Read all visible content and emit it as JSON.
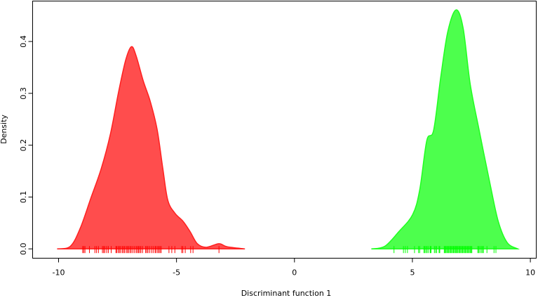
{
  "chart_data": {
    "type": "area",
    "title": "",
    "xlabel": "Discriminant function 1",
    "ylabel": "Density",
    "xlim": [
      -11.1,
      10.25
    ],
    "ylim": [
      -0.018,
      0.478
    ],
    "xticks": [
      -10,
      -5,
      0,
      5,
      10
    ],
    "xtick_labels": [
      "-10",
      "-5",
      "0",
      "5",
      "10"
    ],
    "yticks": [
      0.0,
      0.1,
      0.2,
      0.3,
      0.4
    ],
    "ytick_labels": [
      "0.0",
      "0.1",
      "0.2",
      "0.3",
      "0.4"
    ],
    "grid": false,
    "legend": "none",
    "series": [
      {
        "color": "#ff4d4d",
        "edge_color": "#ff2020",
        "rug_color": "#ff0000",
        "density": [
          [
            -10.06,
            0
          ],
          [
            -9.5,
            0.005
          ],
          [
            -9.08,
            0.04
          ],
          [
            -8.63,
            0.098
          ],
          [
            -8.19,
            0.155
          ],
          [
            -7.8,
            0.222
          ],
          [
            -7.45,
            0.304
          ],
          [
            -7.15,
            0.365
          ],
          [
            -6.91,
            0.39
          ],
          [
            -6.71,
            0.372
          ],
          [
            -6.41,
            0.324
          ],
          [
            -6.11,
            0.284
          ],
          [
            -5.82,
            0.23
          ],
          [
            -5.58,
            0.155
          ],
          [
            -5.37,
            0.094
          ],
          [
            -5.07,
            0.069
          ],
          [
            -4.72,
            0.053
          ],
          [
            -4.42,
            0.033
          ],
          [
            -4.12,
            0.01
          ],
          [
            -3.74,
            0.003
          ],
          [
            -3.2,
            0.01
          ],
          [
            -2.85,
            0.004
          ],
          [
            -2.1,
            0
          ]
        ],
        "rug": [
          -8.98,
          -8.93,
          -8.88,
          -8.69,
          -8.46,
          -8.39,
          -8.31,
          -8.14,
          -8.09,
          -8.04,
          -7.96,
          -7.89,
          -7.77,
          -7.57,
          -7.53,
          -7.47,
          -7.42,
          -7.37,
          -7.3,
          -7.25,
          -7.2,
          -7.13,
          -7.08,
          -7.03,
          -6.97,
          -6.92,
          -6.85,
          -6.78,
          -6.71,
          -6.66,
          -6.61,
          -6.56,
          -6.51,
          -6.44,
          -6.31,
          -6.26,
          -6.21,
          -6.14,
          -6.06,
          -5.99,
          -5.91,
          -5.87,
          -5.8,
          -5.75,
          -5.7,
          -5.65,
          -5.32,
          -5.2,
          -5.07,
          -4.78,
          -4.73,
          -4.63,
          -4.4,
          -4.3,
          -3.2
        ]
      },
      {
        "color": "#4dff4d",
        "edge_color": "#20ff20",
        "rug_color": "#00ff00",
        "density": [
          [
            3.26,
            0
          ],
          [
            3.83,
            0.005
          ],
          [
            4.42,
            0.033
          ],
          [
            5.01,
            0.066
          ],
          [
            5.31,
            0.114
          ],
          [
            5.61,
            0.209
          ],
          [
            5.9,
            0.229
          ],
          [
            6.2,
            0.331
          ],
          [
            6.5,
            0.419
          ],
          [
            6.85,
            0.461
          ],
          [
            7.15,
            0.426
          ],
          [
            7.45,
            0.318
          ],
          [
            7.83,
            0.229
          ],
          [
            8.28,
            0.128
          ],
          [
            8.64,
            0.053
          ],
          [
            9.02,
            0.012
          ],
          [
            9.47,
            0
          ]
        ],
        "rug": [
          4.22,
          4.62,
          4.7,
          4.79,
          5.09,
          5.26,
          5.31,
          5.49,
          5.53,
          5.58,
          5.63,
          5.69,
          5.76,
          5.79,
          5.93,
          5.98,
          6.03,
          6.13,
          6.16,
          6.35,
          6.38,
          6.42,
          6.46,
          6.5,
          6.54,
          6.58,
          6.62,
          6.66,
          6.7,
          6.74,
          6.78,
          6.82,
          6.85,
          6.89,
          6.93,
          6.97,
          7.01,
          7.05,
          7.09,
          7.13,
          7.17,
          7.21,
          7.25,
          7.29,
          7.33,
          7.37,
          7.41,
          7.45,
          7.49,
          7.52,
          7.77,
          7.81,
          7.86,
          7.92,
          7.97,
          8.01,
          8.16,
          8.46,
          8.54
        ]
      }
    ]
  }
}
